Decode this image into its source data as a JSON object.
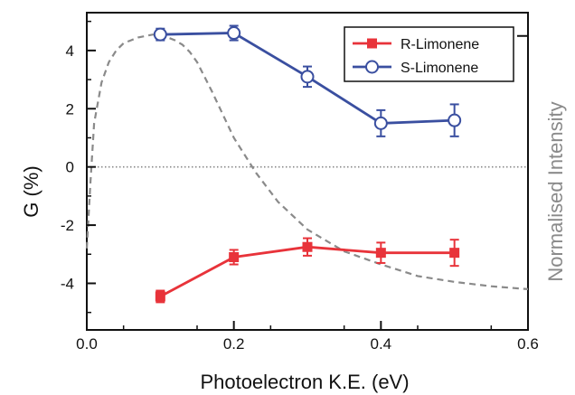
{
  "chart_data": {
    "type": "line",
    "xlabel": "Photoelectron K.E. (eV)",
    "ylabel": "G (%)",
    "y2label": "Normalised Intensity",
    "xlim": [
      0,
      0.6
    ],
    "ylim": [
      -5.6,
      5.3
    ],
    "x_ticks": [
      0.0,
      0.2,
      0.4,
      0.6
    ],
    "x_tick_labels": [
      "0.0",
      "0.2",
      "0.4",
      "0.6"
    ],
    "y_ticks": [
      4,
      2,
      0,
      -2,
      -4
    ],
    "y_tick_labels": [
      "4",
      "2",
      "0",
      "-2",
      "-4"
    ],
    "zero_line": true,
    "grid": false,
    "legend_position": "top-right",
    "colors": {
      "r_limonene": "#e8333a",
      "s_limonene": "#3a4fa0",
      "intensity": "#8a8a8a",
      "zero_line": "#888888",
      "axis": "#111111"
    },
    "series": [
      {
        "name": "R-Limonene",
        "marker": "filled-square",
        "x": [
          0.1,
          0.2,
          0.3,
          0.4,
          0.5
        ],
        "values": [
          -4.45,
          -3.1,
          -2.75,
          -2.95,
          -2.95
        ],
        "errors": [
          0.2,
          0.25,
          0.3,
          0.35,
          0.45
        ]
      },
      {
        "name": "S-Limonene",
        "marker": "open-circle",
        "x": [
          0.1,
          0.2,
          0.3,
          0.4,
          0.5
        ],
        "values": [
          4.55,
          4.6,
          3.1,
          1.5,
          1.6
        ],
        "errors": [
          0.2,
          0.25,
          0.35,
          0.45,
          0.55
        ]
      }
    ],
    "intensity_curve": {
      "style": "dashed",
      "x": [
        0.0,
        0.005,
        0.01,
        0.02,
        0.03,
        0.04,
        0.05,
        0.06,
        0.07,
        0.08,
        0.09,
        0.1,
        0.11,
        0.12,
        0.13,
        0.14,
        0.15,
        0.17,
        0.2,
        0.23,
        0.26,
        0.3,
        0.35,
        0.4,
        0.45,
        0.5,
        0.55,
        0.6
      ],
      "values": [
        -2.8,
        -0.5,
        1.5,
        2.9,
        3.6,
        4.0,
        4.25,
        4.35,
        4.45,
        4.5,
        4.55,
        4.5,
        4.45,
        4.35,
        4.2,
        3.95,
        3.6,
        2.6,
        1.0,
        -0.2,
        -1.2,
        -2.15,
        -2.9,
        -3.35,
        -3.75,
        -3.95,
        -4.1,
        -4.2
      ]
    }
  }
}
